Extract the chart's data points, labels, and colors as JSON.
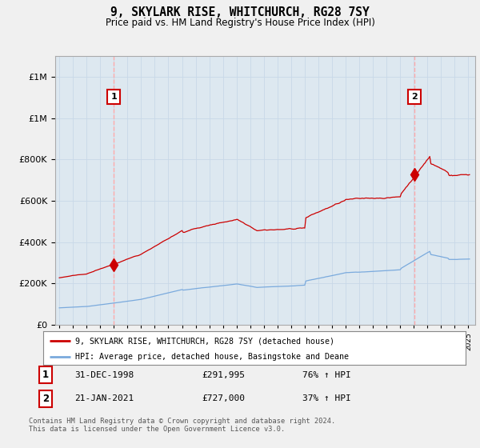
{
  "title": "9, SKYLARK RISE, WHITCHURCH, RG28 7SY",
  "subtitle": "Price paid vs. HM Land Registry's House Price Index (HPI)",
  "legend_line1": "9, SKYLARK RISE, WHITCHURCH, RG28 7SY (detached house)",
  "legend_line2": "HPI: Average price, detached house, Basingstoke and Deane",
  "sale1_label": "1",
  "sale1_date": "31-DEC-1998",
  "sale1_price": "£291,995",
  "sale1_pct": "76% ↑ HPI",
  "sale2_label": "2",
  "sale2_date": "21-JAN-2021",
  "sale2_price": "£727,000",
  "sale2_pct": "37% ↑ HPI",
  "footer": "Contains HM Land Registry data © Crown copyright and database right 2024.\nThis data is licensed under the Open Government Licence v3.0.",
  "line_color_red": "#cc0000",
  "line_color_blue": "#7aaadd",
  "dashed_color": "#ffaaaa",
  "marker1_x": 1998.99,
  "marker1_y": 291995,
  "marker2_x": 2021.05,
  "marker2_y": 727000,
  "ylim": [
    0,
    1300000
  ],
  "xlim_left": 1994.7,
  "xlim_right": 2025.5,
  "background_color": "#f0f0f0",
  "plot_bg_color": "#dde8f0"
}
